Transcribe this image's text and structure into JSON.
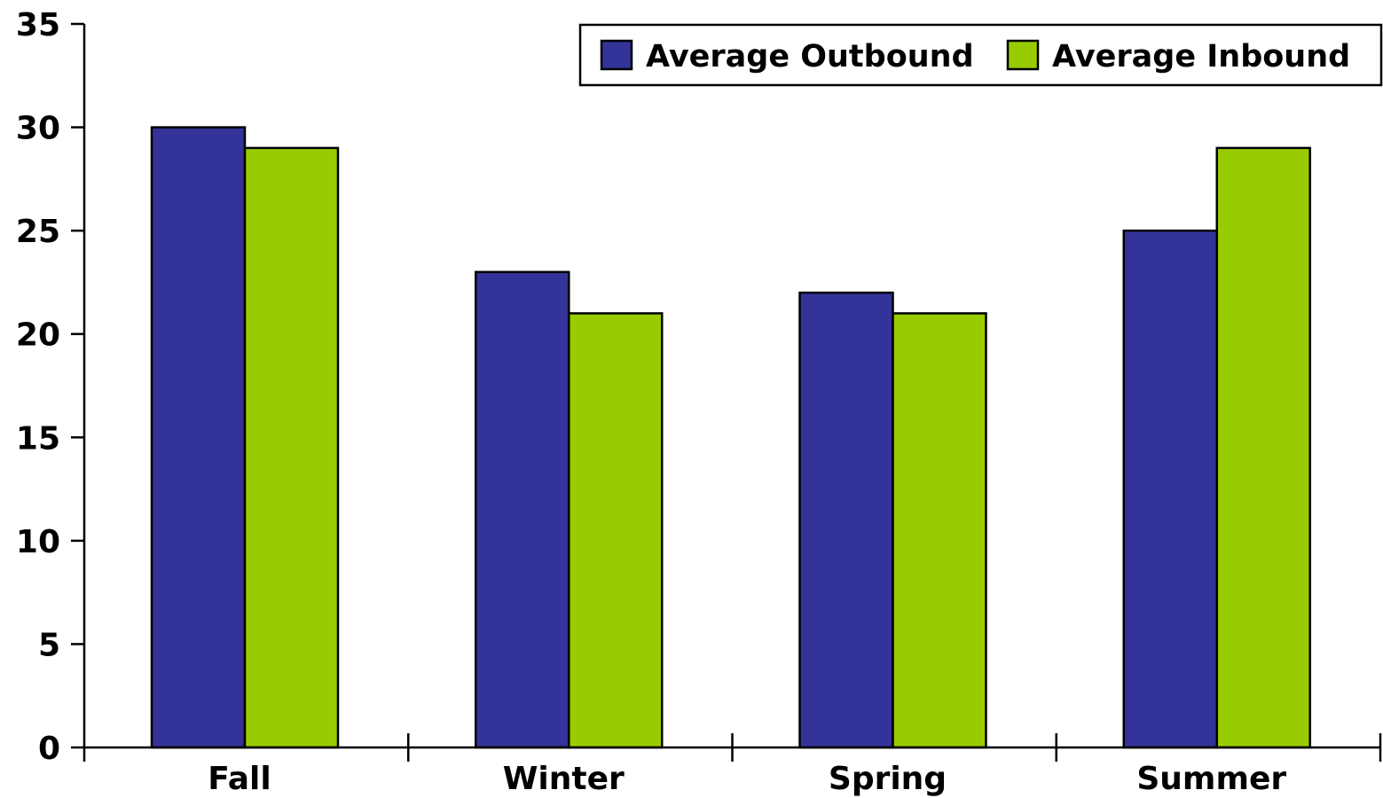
{
  "chart_data": {
    "type": "bar",
    "categories": [
      "Fall",
      "Winter",
      "Spring",
      "Summer"
    ],
    "series": [
      {
        "name": "Average Outbound",
        "values": [
          30,
          23,
          22,
          25
        ],
        "color": "#333399"
      },
      {
        "name": "Average Inbound",
        "values": [
          29,
          21,
          21,
          29
        ],
        "color": "#99CC00"
      }
    ],
    "title": "",
    "xlabel": "",
    "ylabel": "",
    "ylim": [
      0,
      35
    ],
    "yticks": [
      0,
      5,
      10,
      15,
      20,
      25,
      30,
      35
    ],
    "grid": false,
    "legend_position": "top-right"
  }
}
